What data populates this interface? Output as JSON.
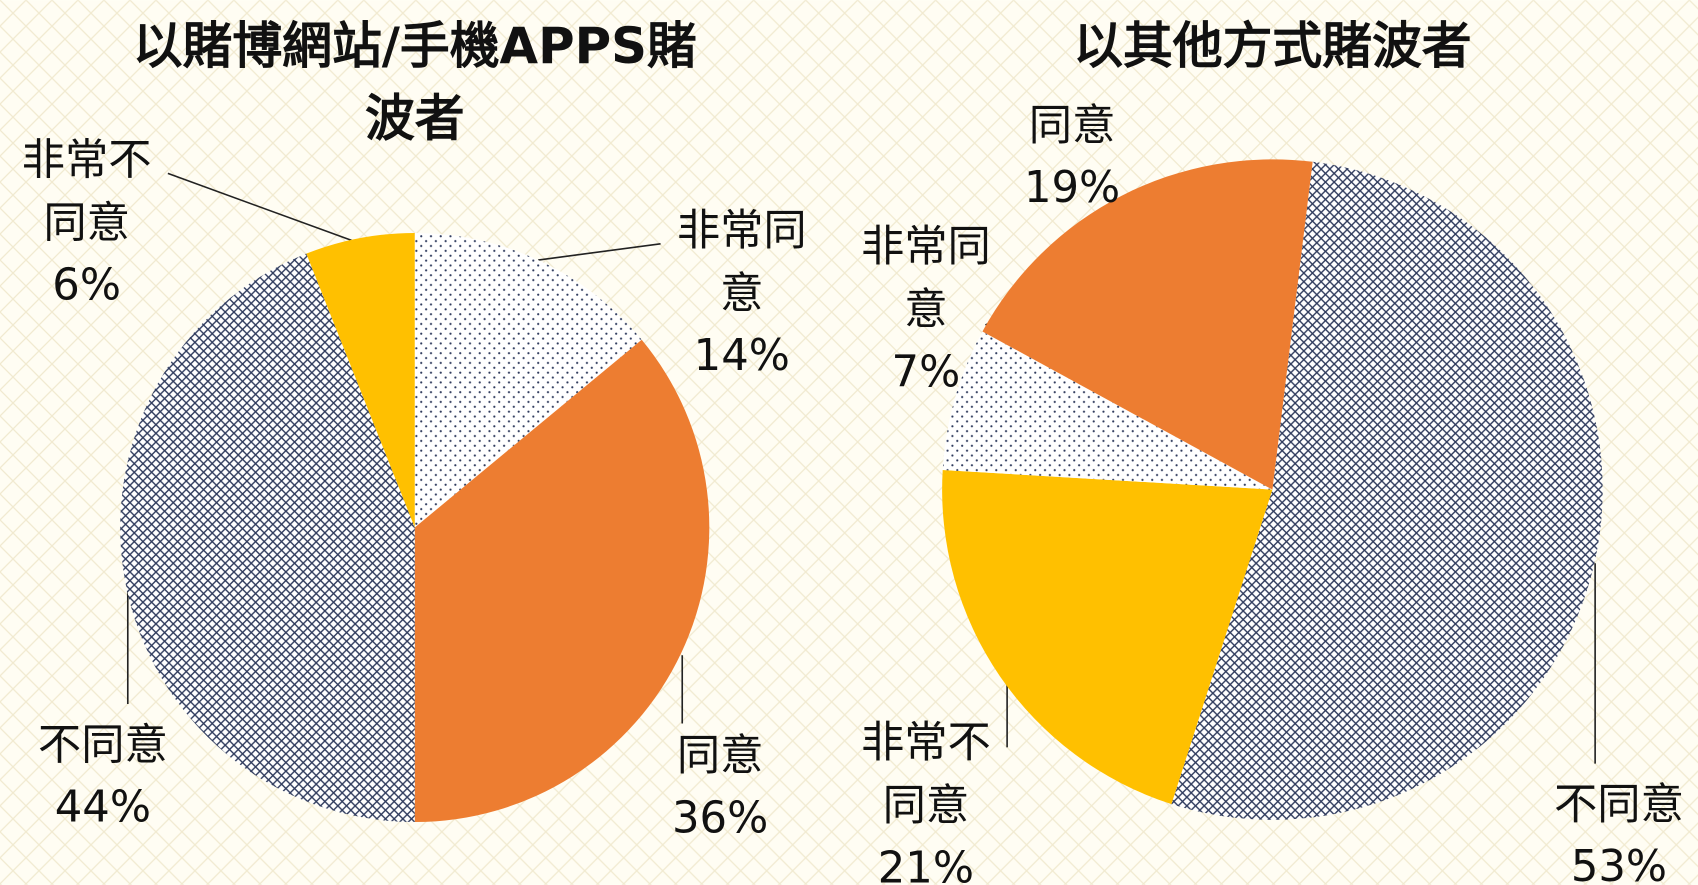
{
  "chart_data": [
    {
      "type": "pie",
      "title": "以賭博網站/手機APPS賭波者",
      "categories": [
        "非常同意",
        "同意",
        "不同意",
        "非常不同意"
      ],
      "values": [
        14,
        36,
        44,
        6
      ],
      "value_labels": [
        "14%",
        "36%",
        "44%",
        "6%"
      ],
      "colors": [
        "#ffffff",
        "#ed7d31",
        "#2e3a5c",
        "#ffc000"
      ],
      "fills": [
        "dots",
        "solid",
        "crosshatch",
        "solid"
      ]
    },
    {
      "type": "pie",
      "title": "以其他方式賭波者",
      "categories": [
        "不同意",
        "非常不同意",
        "非常同意",
        "同意"
      ],
      "values": [
        53,
        21,
        7,
        19
      ],
      "value_labels": [
        "53%",
        "21%",
        "7%",
        "19%"
      ],
      "colors": [
        "#2e3a5c",
        "#ffc000",
        "#ffffff",
        "#ed7d31"
      ],
      "fills": [
        "crosshatch",
        "solid",
        "dots",
        "solid"
      ]
    }
  ]
}
